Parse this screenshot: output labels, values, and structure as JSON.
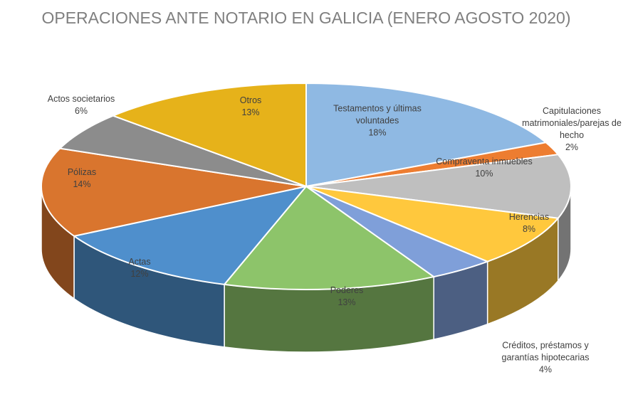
{
  "chart_data": {
    "type": "pie3d",
    "title": "OPERACIONES ANTE NOTARIO EN GALICIA (ENERO AGOSTO 2020)",
    "categories": [
      "Testamentos y últimas voluntades",
      "Capitulaciones matrimoniales/parejas de hecho",
      "Compraventa inmuebles",
      "Herencias",
      "Créditos, préstamos y garantías hipotecarias",
      "Poderes",
      "Actas",
      "Pólizas",
      "Actos societarios",
      "Otros"
    ],
    "values": [
      18,
      2,
      10,
      8,
      4,
      13,
      12,
      14,
      6,
      13
    ],
    "value_labels": [
      "18%",
      "2%",
      "10%",
      "8%",
      "4%",
      "13%",
      "12%",
      "14%",
      "6%",
      "13%"
    ],
    "colors": [
      "#8fb9e3",
      "#ed7d31",
      "#bfbfbf",
      "#ffc83d",
      "#7f9fd9",
      "#8dc46a",
      "#4f8fcc",
      "#d9752e",
      "#8c8c8c",
      "#e6b21a"
    ]
  }
}
